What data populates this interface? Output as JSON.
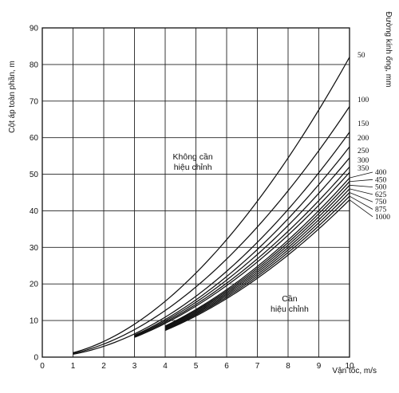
{
  "chart_data": {
    "type": "line",
    "xlabel": "Vận tốc, m/s",
    "ylabel": "Cột áp toàn phần, m",
    "right_label": "Đường kính ống, mm",
    "xlim": [
      0,
      10
    ],
    "ylim": [
      0,
      90
    ],
    "x_ticks": [
      "0",
      "1",
      "2",
      "3",
      "4",
      "5",
      "6",
      "7",
      "8",
      "9",
      "10"
    ],
    "y_ticks": [
      "0",
      "10",
      "20",
      "30",
      "40",
      "50",
      "60",
      "70",
      "80",
      "90"
    ],
    "grid": true,
    "annotations": [
      {
        "lines": [
          "Không cần",
          "hiệu chỉnh"
        ],
        "x": 4.9,
        "y": 54
      },
      {
        "lines": [
          "Cần",
          "hiệu chỉnh"
        ],
        "x": 8.05,
        "y": 15.2
      }
    ],
    "series": [
      {
        "name": "50",
        "x_start": 1.0,
        "x_end": 10,
        "y_start": 1.2,
        "y_end": 82.0
      },
      {
        "name": "100",
        "x_start": 1.0,
        "x_end": 10,
        "y_start": 1.0,
        "y_end": 68.5
      },
      {
        "name": "150",
        "x_start": 1.0,
        "x_end": 10,
        "y_start": 0.8,
        "y_end": 61.5
      },
      {
        "name": "200",
        "x_start": 3.0,
        "x_end": 10,
        "y_start": 6.0,
        "y_end": 57.5
      },
      {
        "name": "250",
        "x_start": 3.0,
        "x_end": 10,
        "y_start": 5.8,
        "y_end": 54.5
      },
      {
        "name": "300",
        "x_start": 3.0,
        "x_end": 10,
        "y_start": 5.6,
        "y_end": 52.0
      },
      {
        "name": "350",
        "x_start": 3.0,
        "x_end": 10,
        "y_start": 5.4,
        "y_end": 50.5
      },
      {
        "name": "400",
        "x_start": 4.0,
        "x_end": 10,
        "y_start": 8.5,
        "y_end": 49.0
      },
      {
        "name": "450",
        "x_start": 4.0,
        "x_end": 10,
        "y_start": 8.3,
        "y_end": 48.0
      },
      {
        "name": "500",
        "x_start": 4.0,
        "x_end": 10,
        "y_start": 8.1,
        "y_end": 47.0
      },
      {
        "name": "625",
        "x_start": 4.0,
        "x_end": 10,
        "y_start": 7.9,
        "y_end": 46.0
      },
      {
        "name": "750",
        "x_start": 4.0,
        "x_end": 10,
        "y_start": 7.7,
        "y_end": 45.0
      },
      {
        "name": "875",
        "x_start": 4.0,
        "x_end": 10,
        "y_start": 7.5,
        "y_end": 44.0
      },
      {
        "name": "1000",
        "x_start": 4.0,
        "x_end": 10,
        "y_start": 7.3,
        "y_end": 43.0
      }
    ]
  }
}
